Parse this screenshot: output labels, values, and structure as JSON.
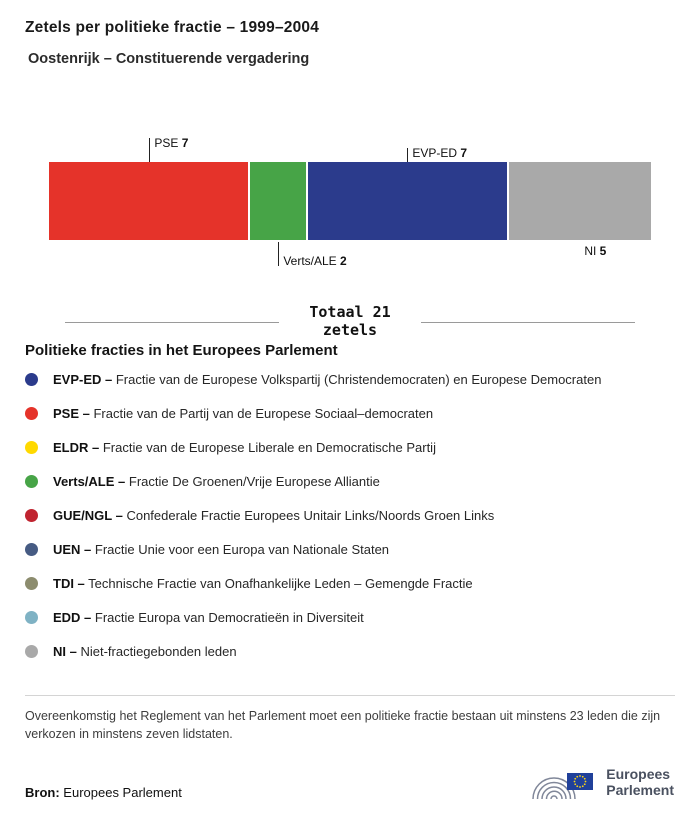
{
  "header": {
    "title": "Zetels per politieke fractie – 1999–2004",
    "subtitle": "Oostenrijk – Constituerende vergadering"
  },
  "chart_data": {
    "type": "bar",
    "variant": "stacked-horizontal",
    "title": "Zetels per politieke fractie – 1999–2004",
    "subtitle": "Oostenrijk – Constituerende vergadering",
    "total_seats": 21,
    "total_label_line1": "Totaal 21",
    "total_label_line2": "zetels",
    "categories": [
      "PSE",
      "Verts/ALE",
      "EVP-ED",
      "NI"
    ],
    "values": [
      7,
      2,
      7,
      5
    ],
    "segments": [
      {
        "name": "PSE",
        "seats": 7,
        "color": "#E5332A",
        "label_side": "top",
        "tick": true
      },
      {
        "name": "Verts/ALE",
        "seats": 2,
        "color": "#47A447",
        "label_side": "bottom",
        "tick": true
      },
      {
        "name": "EVP-ED",
        "seats": 7,
        "color": "#2B3B8C",
        "label_side": "top",
        "tick": true
      },
      {
        "name": "NI",
        "seats": 5,
        "color": "#A9A9A9",
        "label_side": "bottom",
        "tick": false
      }
    ]
  },
  "legend": {
    "heading": "Politieke fracties in het Europees Parlement",
    "items": [
      {
        "abbr": "EVP-ED –",
        "desc": "Fractie van de Europese Volkspartij (Christendemocraten) en Europese Democraten",
        "color": "#2B3B8C"
      },
      {
        "abbr": "PSE –",
        "desc": "Fractie van de Partij van de Europese Sociaal–democraten",
        "color": "#E5332A"
      },
      {
        "abbr": "ELDR –",
        "desc": "Fractie van de Europese Liberale en Democratische Partij",
        "color": "#FFD900"
      },
      {
        "abbr": "Verts/ALE –",
        "desc": "Fractie De Groenen/Vrije Europese Alliantie",
        "color": "#47A447"
      },
      {
        "abbr": "GUE/NGL –",
        "desc": "Confederale Fractie Europees Unitair Links/Noords Groen Links",
        "color": "#C02430"
      },
      {
        "abbr": "UEN –",
        "desc": "Fractie Unie voor een Europa van Nationale Staten",
        "color": "#465B83"
      },
      {
        "abbr": "TDI –",
        "desc": "Technische Fractie van Onafhankelijke Leden – Gemengde Fractie",
        "color": "#8C8C6E"
      },
      {
        "abbr": "EDD –",
        "desc": "Fractie Europa van Democratieën in Diversiteit",
        "color": "#7FB2C4"
      },
      {
        "abbr": "NI –",
        "desc": "Niet-fractiegebonden leden",
        "color": "#A9A9A9"
      }
    ]
  },
  "footer": {
    "note": "Overeenkomstig het Reglement van het Parlement moet een politieke fractie bestaan uit minstens 23 leden die zijn verkozen in minstens zeven lidstaten.",
    "source_label": "Bron:",
    "source_value": "Europees Parlement",
    "logo_line1": "Europees",
    "logo_line2": "Parlement"
  }
}
